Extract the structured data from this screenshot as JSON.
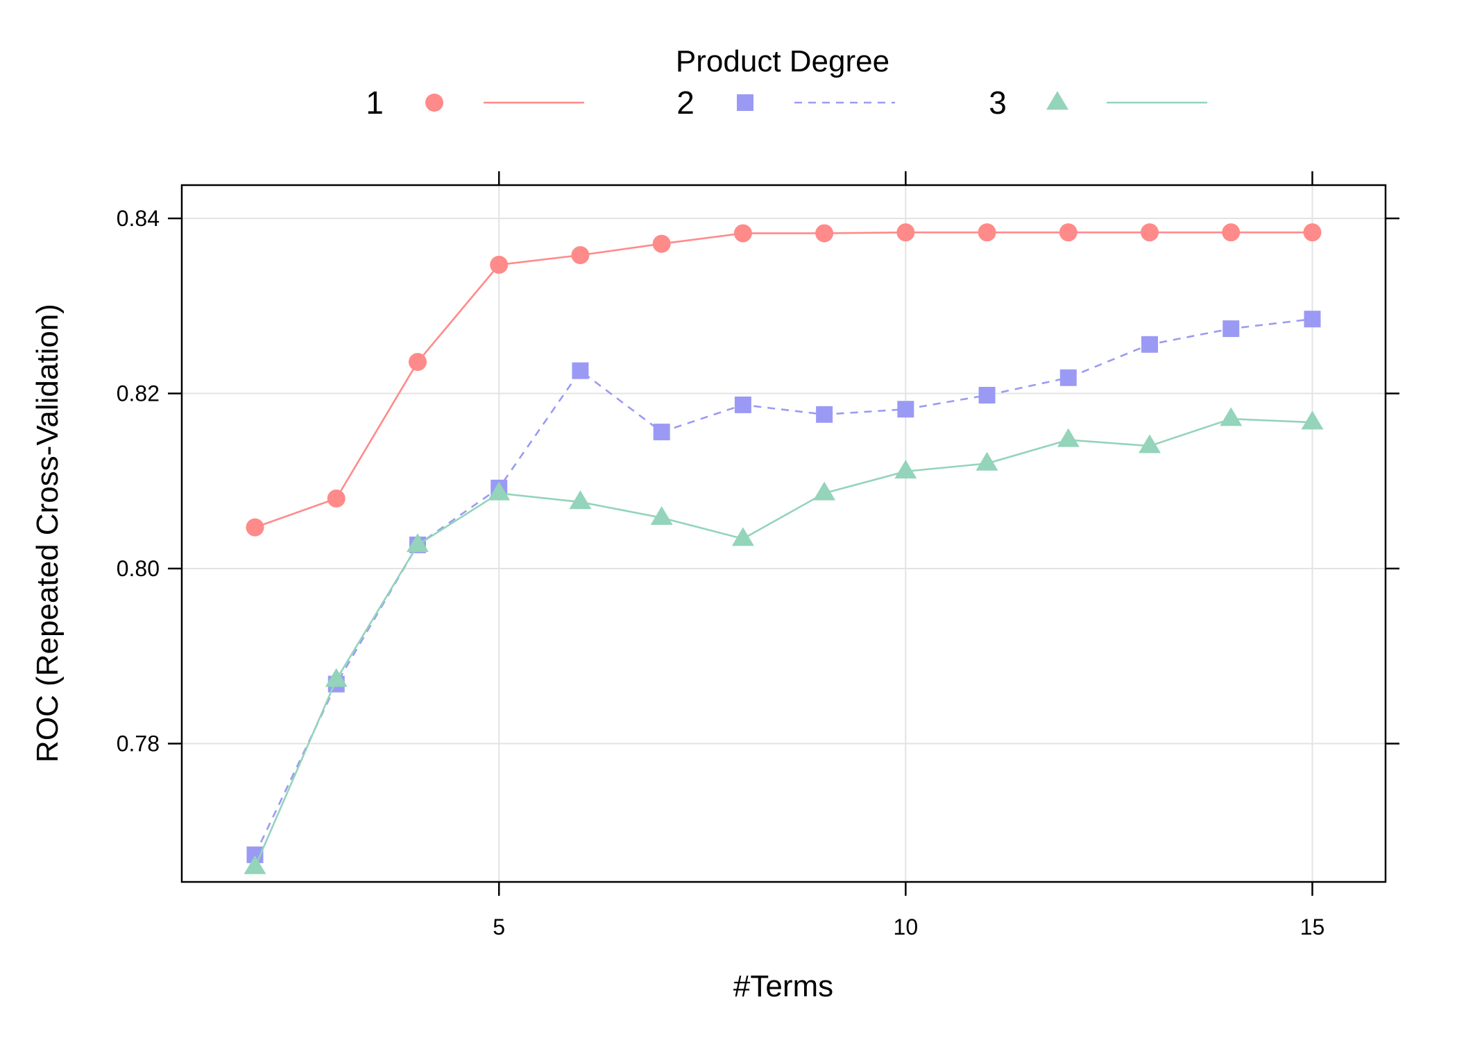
{
  "chart_data": {
    "type": "line",
    "xlabel": "#Terms",
    "ylabel": "ROC (Repeated Cross-Validation)",
    "xlim": [
      1.1,
      15.9
    ],
    "ylim": [
      0.7642,
      0.8438
    ],
    "xticks": [
      5,
      10,
      15
    ],
    "yticks": [
      0.78,
      0.8,
      0.82,
      0.84
    ],
    "ytick_labels": [
      "0.78",
      "0.80",
      "0.82",
      "0.84"
    ],
    "grid": true,
    "x": [
      2,
      3,
      4,
      5,
      6,
      7,
      8,
      9,
      10,
      11,
      12,
      13,
      14,
      15
    ],
    "legend": {
      "title": "Product Degree",
      "position": "top"
    },
    "series": [
      {
        "name": "1",
        "color": "#ff8a8a",
        "marker": "circle",
        "dash": "solid",
        "values": [
          0.8047,
          0.808,
          0.8236,
          0.8347,
          0.8358,
          0.8371,
          0.8383,
          0.8383,
          0.8384,
          0.8384,
          0.8384,
          0.8384,
          0.8384,
          0.8384
        ]
      },
      {
        "name": "2",
        "color": "#9a9af5",
        "marker": "square",
        "dash": "dashed",
        "values": [
          0.7673,
          0.7868,
          0.8027,
          0.8092,
          0.8226,
          0.8156,
          0.8187,
          0.8176,
          0.8182,
          0.8198,
          0.8218,
          0.8256,
          0.8274,
          0.8285
        ]
      },
      {
        "name": "3",
        "color": "#93d4ba",
        "marker": "triangle",
        "dash": "solid",
        "values": [
          0.7659,
          0.7873,
          0.8027,
          0.8086,
          0.8076,
          0.8058,
          0.8034,
          0.8086,
          0.8111,
          0.812,
          0.8147,
          0.814,
          0.8171,
          0.8167
        ]
      }
    ]
  }
}
